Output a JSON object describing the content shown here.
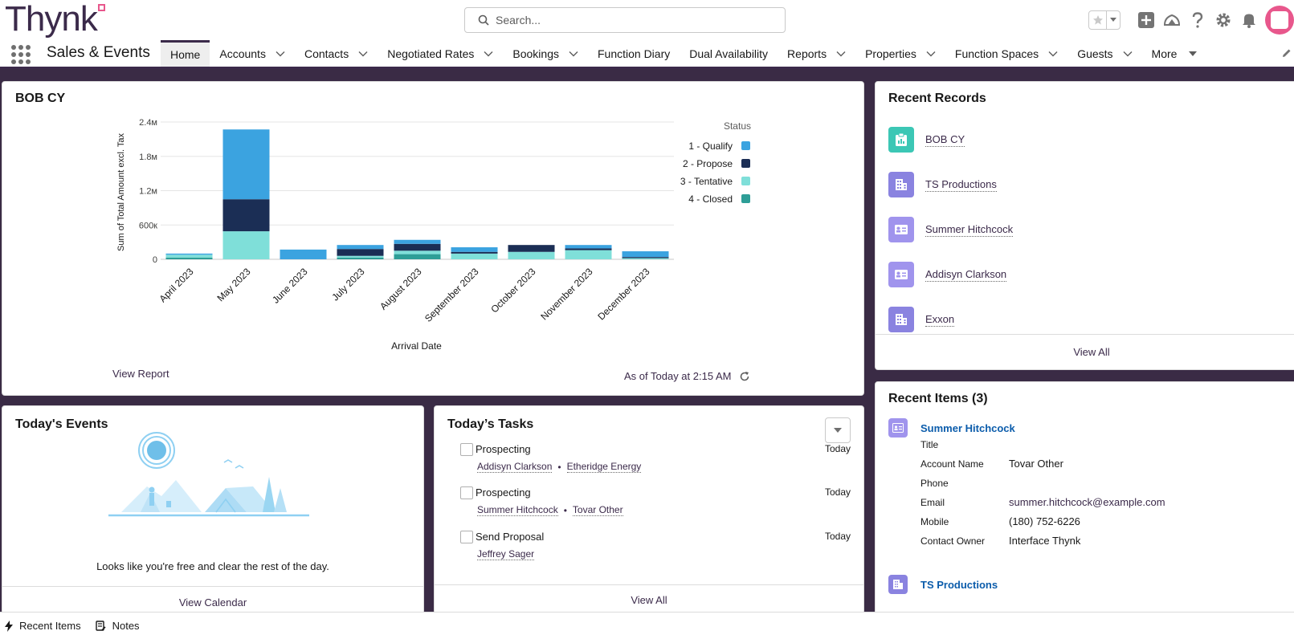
{
  "header": {
    "logo_text": "Thynk",
    "search_placeholder": "Search..."
  },
  "nav": {
    "app_name": "Sales & Events",
    "items": [
      {
        "label": "Home",
        "active": true,
        "menu": "none"
      },
      {
        "label": "Accounts",
        "menu": "chevron"
      },
      {
        "label": "Contacts",
        "menu": "chevron"
      },
      {
        "label": "Negotiated Rates",
        "menu": "chevron"
      },
      {
        "label": "Bookings",
        "menu": "chevron"
      },
      {
        "label": "Function Diary",
        "menu": "none"
      },
      {
        "label": "Dual Availability",
        "menu": "none"
      },
      {
        "label": "Reports",
        "menu": "chevron"
      },
      {
        "label": "Properties",
        "menu": "chevron"
      },
      {
        "label": "Function Spaces",
        "menu": "chevron"
      },
      {
        "label": "Guests",
        "menu": "chevron"
      },
      {
        "label": "More",
        "menu": "triangle"
      }
    ]
  },
  "bob": {
    "title": "BOB CY",
    "view_report": "View Report",
    "as_of": "As of Today at 2:15 AM"
  },
  "chart_data": {
    "type": "bar",
    "stacked": true,
    "xlabel": "Arrival Date",
    "ylabel": "Sum of Total Amount excl. Tax",
    "y_ticks": [
      "0",
      "600к",
      "1.2м",
      "1.8м",
      "2.4м"
    ],
    "ylim": [
      0,
      2400000
    ],
    "legend_title": "Status",
    "legend_position": "right",
    "categories": [
      "April 2023",
      "May 2023",
      "June 2023",
      "July 2023",
      "August 2023",
      "September 2023",
      "October 2023",
      "November 2023",
      "December 2023"
    ],
    "series": [
      {
        "name": "4 - Closed",
        "color": "#2e9e97",
        "values": [
          30000,
          0,
          0,
          30000,
          90000,
          0,
          0,
          0,
          0
        ]
      },
      {
        "name": "3 - Tentative",
        "color": "#7fdfd9",
        "values": [
          50000,
          490000,
          0,
          30000,
          60000,
          100000,
          130000,
          160000,
          20000
        ]
      },
      {
        "name": "2 - Propose",
        "color": "#1b2e55",
        "values": [
          0,
          560000,
          0,
          120000,
          120000,
          30000,
          120000,
          30000,
          20000
        ]
      },
      {
        "name": "1 - Qualify",
        "color": "#3ba3e0",
        "values": [
          20000,
          1220000,
          170000,
          70000,
          70000,
          80000,
          0,
          60000,
          100000
        ]
      }
    ]
  },
  "records": {
    "title": "Recent Records",
    "items": [
      {
        "label": "BOB CY",
        "icon": "report-icon",
        "color": "#3cc7b5"
      },
      {
        "label": "TS Productions",
        "icon": "building-icon",
        "color": "#8a83e0"
      },
      {
        "label": "Summer Hitchcock",
        "icon": "contact-card-icon",
        "color": "#a094ed"
      },
      {
        "label": "Addisyn Clarkson",
        "icon": "contact-card-icon",
        "color": "#a094ed"
      },
      {
        "label": "Exxon",
        "icon": "building-icon",
        "color": "#8a83e0"
      }
    ],
    "view_all": "View All"
  },
  "events": {
    "title": "Today's Events",
    "message": "Looks like you're free and clear the rest of the day.",
    "view_calendar": "View Calendar"
  },
  "tasks": {
    "title": "Today’s Tasks",
    "items": [
      {
        "name": "Prospecting",
        "date": "Today",
        "links": [
          "Addisyn Clarkson",
          "Etheridge Energy"
        ]
      },
      {
        "name": "Prospecting",
        "date": "Today",
        "links": [
          "Summer Hitchcock",
          "Tovar Other"
        ]
      },
      {
        "name": "Send Proposal",
        "date": "Today",
        "links": [
          "Jeffrey Sager"
        ]
      }
    ],
    "view_all": "View All"
  },
  "recent_items": {
    "title": "Recent Items (3)",
    "first": {
      "name": "Summer Hitchcock",
      "fields": [
        {
          "label": "Title",
          "value": ""
        },
        {
          "label": "Account Name",
          "value": "Tovar Other"
        },
        {
          "label": "Phone",
          "value": ""
        },
        {
          "label": "Email",
          "value": "summer.hitchcock@example.com"
        },
        {
          "label": "Mobile",
          "value": "(180) 752-6226"
        },
        {
          "label": "Contact Owner",
          "value": "Interface Thynk"
        }
      ]
    },
    "second": {
      "name": "TS Productions"
    }
  },
  "utility": {
    "items": [
      {
        "label": "Recent Items",
        "icon": "lightning-icon"
      },
      {
        "label": "Notes",
        "icon": "notes-icon"
      }
    ]
  },
  "colors": {
    "brand": "#3b2a4a",
    "accent_pink": "#e8578c",
    "link": "#0b5cab"
  }
}
